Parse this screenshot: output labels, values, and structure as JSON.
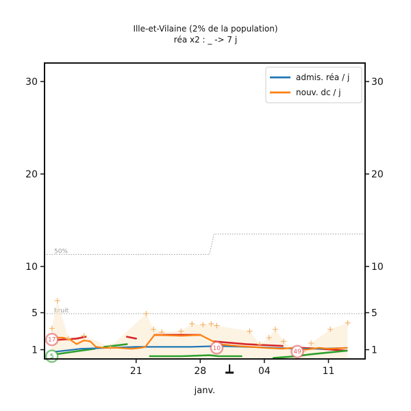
{
  "chart_data": {
    "type": "line",
    "title": "Ille-et-Vilaine (2% de la population)",
    "subtitle": "réa x2 : _ -> 7 j",
    "xlabel": "janv.",
    "x_tick_labels": [
      "21",
      "28",
      "04",
      "11"
    ],
    "x_tick_days": [
      21,
      28,
      35,
      42
    ],
    "y_ticks": [
      1,
      5,
      10,
      20,
      30
    ],
    "ylim": [
      0,
      32
    ],
    "xlim": [
      11,
      46
    ],
    "grid": false,
    "legend_position": "top-right",
    "series": [
      {
        "name": "admis. réa / j",
        "color": "#1f77b4",
        "points": [
          [
            11.5,
            0.7
          ],
          [
            15,
            1.1
          ],
          [
            18,
            1.2
          ],
          [
            21,
            1.3
          ],
          [
            24,
            1.3
          ],
          [
            27,
            1.3
          ],
          [
            30,
            1.4
          ],
          [
            33,
            1.3
          ],
          [
            36,
            1.2
          ],
          [
            39,
            1.1
          ],
          [
            41,
            1.1
          ],
          [
            44,
            1.2
          ]
        ]
      },
      {
        "name": "nouv. dc / j",
        "color": "#ff7f0e",
        "points": [
          [
            11.5,
            2.3
          ],
          [
            13,
            2.3
          ],
          [
            13.8,
            2.1
          ],
          [
            14.5,
            1.6
          ],
          [
            15.3,
            2.0
          ],
          [
            16,
            1.9
          ],
          [
            16.6,
            1.3
          ],
          [
            17.5,
            1.2
          ],
          [
            19,
            1.2
          ],
          [
            20.5,
            1.1
          ],
          [
            21.5,
            1.2
          ],
          [
            22,
            1.3
          ],
          [
            23,
            2.6
          ],
          [
            26,
            2.5
          ],
          [
            28,
            2.6
          ],
          [
            30,
            1.6
          ],
          [
            32,
            1.4
          ],
          [
            35,
            1.2
          ],
          [
            37,
            1.1
          ],
          [
            38,
            1.2
          ],
          [
            39.5,
            1.0
          ],
          [
            41,
            1.2
          ],
          [
            42,
            1.1
          ],
          [
            44,
            1.2
          ]
        ]
      }
    ],
    "overlay_series": [
      {
        "segments": [
          [
            [
              11.5,
              2.0
            ],
            [
              14.5,
              2.2
            ],
            [
              15.5,
              2.4
            ]
          ],
          [
            [
              20,
              2.4
            ],
            [
              21,
              2.2
            ]
          ],
          [
            [
              23,
              2.6
            ],
            [
              26.5,
              2.6
            ],
            [
              28,
              2.6
            ]
          ],
          [
            [
              29.5,
              1.9
            ],
            [
              33,
              1.6
            ],
            [
              37,
              1.4
            ]
          ],
          [
            [
              39,
              1.2
            ],
            [
              41,
              1.1
            ],
            [
              44,
              0.9
            ]
          ]
        ],
        "color": "#d62728"
      },
      {
        "segments": [
          [
            [
              11.5,
              0.4
            ],
            [
              15,
              0.9
            ],
            [
              16.5,
              1.1
            ]
          ],
          [
            [
              17.5,
              1.3
            ],
            [
              20,
              1.6
            ]
          ],
          [
            [
              22.5,
              0.3
            ],
            [
              26,
              0.3
            ],
            [
              29,
              0.4
            ],
            [
              30,
              0.3
            ],
            [
              32.5,
              0.3
            ]
          ],
          [
            [
              36,
              0.1
            ],
            [
              38.5,
              0.3
            ],
            [
              40,
              0.5
            ],
            [
              44,
              0.9
            ]
          ]
        ],
        "color": "#2ca02c"
      }
    ],
    "scatter_series": {
      "color": "#f2b36b",
      "points": [
        [
          11.8,
          3.3
        ],
        [
          12.4,
          6.3
        ],
        [
          13.6,
          2.2
        ],
        [
          15.3,
          2.5
        ],
        [
          18.2,
          1.3
        ],
        [
          22.1,
          4.9
        ],
        [
          22.9,
          3.2
        ],
        [
          23.8,
          2.9
        ],
        [
          25.9,
          3.0
        ],
        [
          27.1,
          3.8
        ],
        [
          28.3,
          3.7
        ],
        [
          29.2,
          3.8
        ],
        [
          29.8,
          3.6
        ],
        [
          33.4,
          3.0
        ],
        [
          34.5,
          1.6
        ],
        [
          35.5,
          2.3
        ],
        [
          36.2,
          3.2
        ],
        [
          37.1,
          1.9
        ],
        [
          38.2,
          0.9
        ],
        [
          39.2,
          0.8
        ],
        [
          40.1,
          1.7
        ],
        [
          42.2,
          3.2
        ],
        [
          44.1,
          3.9
        ]
      ]
    },
    "reference_lines": [
      {
        "label": "50%",
        "points": [
          [
            11,
            11.3
          ],
          [
            29,
            11.3
          ],
          [
            29.5,
            13.5
          ],
          [
            46,
            13.5
          ]
        ],
        "color": "#999999"
      },
      {
        "label": "bruit",
        "points": [
          [
            11,
            4.9
          ],
          [
            46,
            4.9
          ]
        ],
        "color": "#999999"
      }
    ],
    "markers": [
      {
        "label": "17",
        "x": 11.8,
        "y": 2.1,
        "color": "#e05a5a"
      },
      {
        "label": "5",
        "x": 11.8,
        "y": 0.3,
        "color": "#2ca02c"
      },
      {
        "label": "10",
        "x": 29.8,
        "y": 1.2,
        "color": "#e05a5a"
      },
      {
        "label": "49",
        "x": 38.6,
        "y": 0.8,
        "color": "#e05a5a"
      }
    ]
  }
}
